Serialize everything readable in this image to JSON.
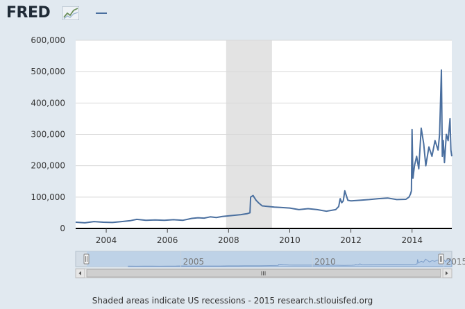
{
  "header": {
    "logo_text": "FRED",
    "logo_icon": "chart-line-icon"
  },
  "colors": {
    "page_background": "#e1e9f0",
    "plot_background": "#ffffff",
    "series_line": "#4a6f9f",
    "recession_shade": "#e3e3e3",
    "navigator_fill": "#b7cde7",
    "navigator_line": "#7d9ec9"
  },
  "chart_data": {
    "type": "line",
    "title": "",
    "xlabel": "",
    "ylabel": "",
    "xlim": [
      2003.0,
      2015.3
    ],
    "ylim": [
      0,
      600000
    ],
    "y_ticks": [
      0,
      100000,
      200000,
      300000,
      400000,
      500000,
      600000
    ],
    "y_tick_labels": [
      "0",
      "100,000",
      "200,000",
      "300,000",
      "400,000",
      "500,000",
      "600,000"
    ],
    "x_ticks": [
      2004,
      2006,
      2008,
      2010,
      2012,
      2014
    ],
    "x_tick_labels": [
      "2004",
      "2006",
      "2008",
      "2010",
      "2012",
      "2014"
    ],
    "grid": "horizontal",
    "legend": "top-left",
    "recession_shading": [
      [
        2007.92,
        2009.42
      ]
    ],
    "series": [
      {
        "name": "",
        "x": [
          2003.0,
          2003.3,
          2003.6,
          2003.9,
          2004.2,
          2004.5,
          2004.8,
          2005.0,
          2005.3,
          2005.6,
          2005.9,
          2006.2,
          2006.5,
          2006.8,
          2007.0,
          2007.2,
          2007.4,
          2007.6,
          2007.8,
          2008.0,
          2008.2,
          2008.4,
          2008.6,
          2008.7,
          2008.72,
          2008.8,
          2008.9,
          2009.0,
          2009.1,
          2009.3,
          2009.5,
          2009.7,
          2010.0,
          2010.3,
          2010.6,
          2010.9,
          2011.2,
          2011.5,
          2011.6,
          2011.65,
          2011.7,
          2011.75,
          2011.8,
          2011.9,
          2012.0,
          2012.3,
          2012.6,
          2012.9,
          2013.2,
          2013.5,
          2013.8,
          2013.9,
          2013.95,
          2013.98,
          2014.0,
          2014.03,
          2014.08,
          2014.15,
          2014.22,
          2014.3,
          2014.38,
          2014.45,
          2014.55,
          2014.65,
          2014.75,
          2014.85,
          2014.9,
          2014.96,
          2014.99,
          2015.02,
          2015.06,
          2015.12,
          2015.18,
          2015.24,
          2015.27,
          2015.3
        ],
        "values": [
          20000,
          18000,
          22000,
          20000,
          19000,
          22000,
          25000,
          29000,
          26000,
          27000,
          26000,
          28000,
          26000,
          32000,
          34000,
          33000,
          37000,
          35000,
          38000,
          40000,
          42000,
          44000,
          47000,
          50000,
          100000,
          105000,
          90000,
          80000,
          72000,
          70000,
          68000,
          67000,
          65000,
          60000,
          63000,
          60000,
          55000,
          60000,
          70000,
          95000,
          82000,
          88000,
          120000,
          90000,
          88000,
          90000,
          92000,
          95000,
          97000,
          92000,
          93000,
          100000,
          110000,
          120000,
          315000,
          160000,
          200000,
          230000,
          190000,
          320000,
          270000,
          200000,
          260000,
          230000,
          280000,
          250000,
          300000,
          505000,
          230000,
          280000,
          210000,
          300000,
          280000,
          350000,
          250000,
          230000
        ]
      }
    ],
    "navigator": {
      "x_tick_labels": [
        "2005",
        "2010",
        "2015"
      ],
      "x_ticks": [
        2005,
        2010,
        2015
      ],
      "xlim": [
        2001.0,
        2015.3
      ]
    }
  },
  "footer": {
    "caption": "Shaded areas indicate US recessions - 2015 research.stlouisfed.org"
  }
}
